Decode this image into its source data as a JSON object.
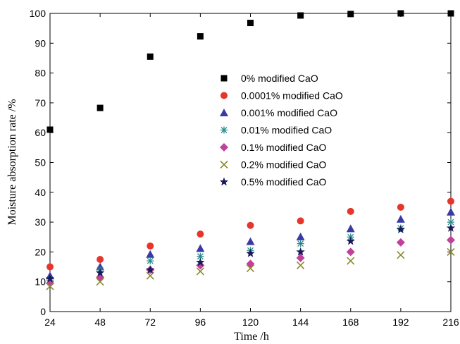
{
  "chart_data": {
    "type": "scatter",
    "xlabel": "Time /h",
    "ylabel": "Moisture absorption rate /%",
    "xlim": [
      24,
      216
    ],
    "ylim": [
      0,
      100
    ],
    "x_ticks": [
      24,
      48,
      72,
      96,
      120,
      144,
      168,
      192,
      216
    ],
    "y_ticks": [
      0,
      10,
      20,
      30,
      40,
      50,
      60,
      70,
      80,
      90,
      100
    ],
    "legend_position": "center",
    "grid": false,
    "x": [
      24,
      48,
      72,
      96,
      120,
      144,
      168,
      192,
      216
    ],
    "series": [
      {
        "name": "0% modified CaO",
        "marker": "square",
        "color": "#000000",
        "values": [
          61.0,
          68.3,
          85.5,
          92.3,
          96.8,
          99.3,
          99.8,
          100.0,
          100.0
        ]
      },
      {
        "name": "0.0001% modified CaO",
        "marker": "circle",
        "color": "#e8352b",
        "values": [
          15.0,
          17.5,
          22.0,
          26.0,
          28.9,
          30.4,
          33.6,
          35.0,
          37.0
        ]
      },
      {
        "name": "0.001% modified CaO",
        "marker": "triangle",
        "color": "#3a3aa6",
        "values": [
          12.0,
          15.0,
          19.2,
          21.2,
          23.5,
          25.1,
          27.8,
          31.0,
          33.4
        ]
      },
      {
        "name": "0.01% modified CaO",
        "marker": "asterisk",
        "color": "#2a8a8a",
        "values": [
          10.5,
          14.0,
          17.0,
          18.5,
          20.5,
          22.8,
          25.0,
          28.0,
          30.0
        ]
      },
      {
        "name": "0.1% modified CaO",
        "marker": "diamond",
        "color": "#c0409a",
        "values": [
          9.5,
          11.5,
          14.0,
          15.5,
          16.0,
          18.0,
          20.0,
          23.2,
          24.0
        ]
      },
      {
        "name": "0.2% modified CaO",
        "marker": "x",
        "color": "#8a8a2a",
        "values": [
          8.5,
          10.0,
          12.0,
          13.5,
          14.5,
          15.5,
          17.0,
          19.0,
          20.0
        ]
      },
      {
        "name": "0.5% modified CaO",
        "marker": "star",
        "color": "#1a1a5a",
        "values": [
          11.0,
          13.0,
          14.0,
          16.5,
          19.5,
          20.0,
          23.6,
          27.5,
          28.0
        ]
      }
    ]
  }
}
